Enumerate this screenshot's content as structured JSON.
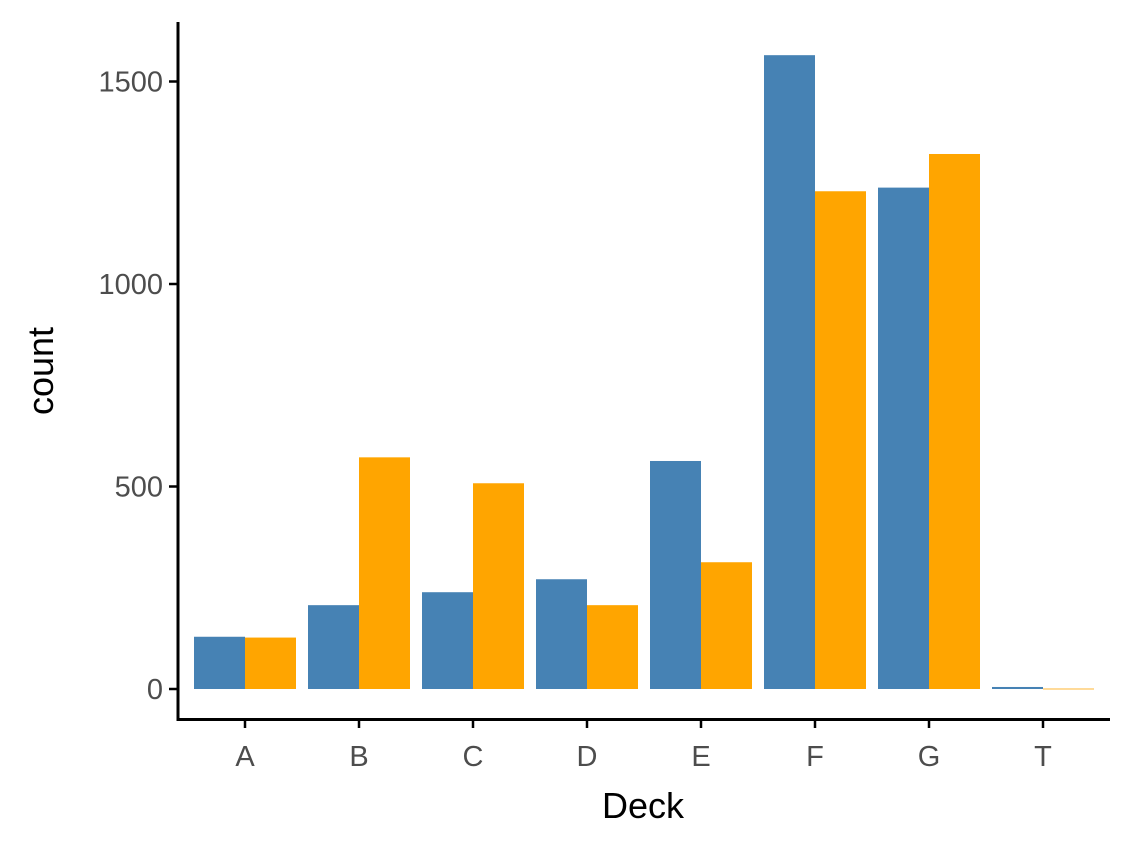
{
  "chart_data": {
    "type": "bar",
    "title": "",
    "xlabel": "Deck",
    "ylabel": "count",
    "categories": [
      "A",
      "B",
      "C",
      "D",
      "E",
      "F",
      "G",
      "T"
    ],
    "series": [
      {
        "color": "#4682B4",
        "values": [
          129,
          207,
          239,
          271,
          563,
          1565,
          1238,
          5
        ]
      },
      {
        "color": "#FFA500",
        "values": [
          127,
          572,
          508,
          207,
          313,
          1229,
          1321,
          1
        ]
      }
    ],
    "ylim": [
      -75,
      1640
    ],
    "yticks": [
      0,
      500,
      1000,
      1500
    ],
    "grid": false,
    "legend": "none"
  }
}
